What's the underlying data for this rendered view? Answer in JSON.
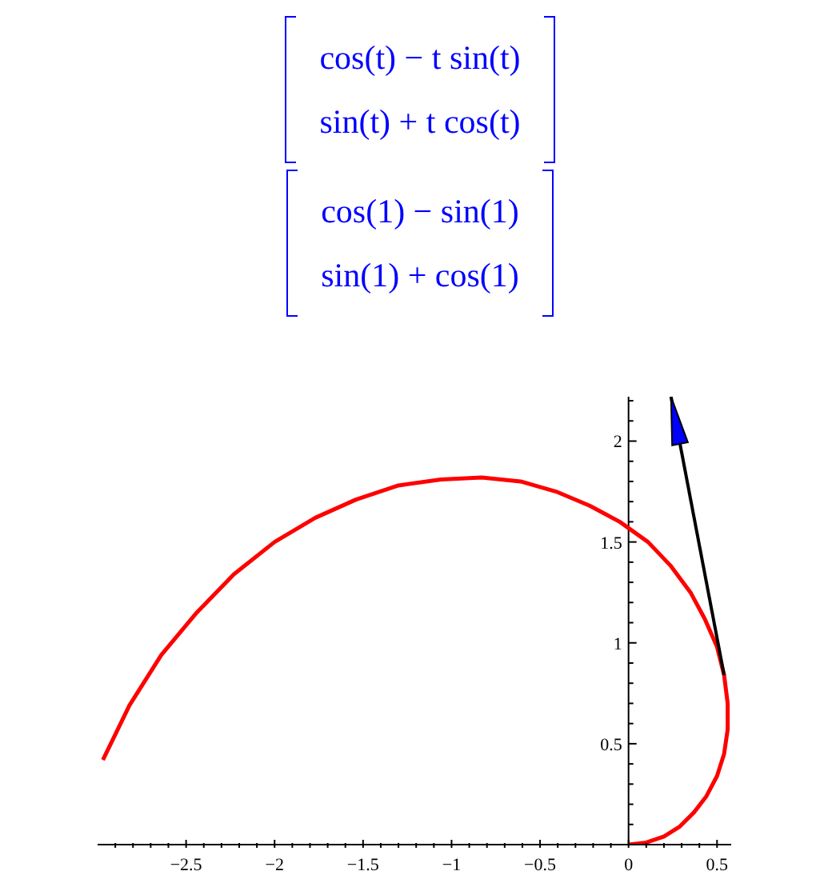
{
  "chart_data": {
    "type": "line",
    "annotations": [
      "cos(t) − t sin(t)",
      "sin(t) + t cos(t)",
      "cos(1) − sin(1)",
      "sin(1) + cos(1)"
    ],
    "series": [
      {
        "color": "#ff0000",
        "x": [
          0,
          0.1,
          0.2,
          0.29,
          0.37,
          0.44,
          0.5,
          0.54,
          0.56,
          0.56,
          0.54,
          0.5,
          0.43,
          0.35,
          0.24,
          0.11,
          -0.05,
          -0.22,
          -0.41,
          -0.61,
          -0.83,
          -1.06,
          -1.3,
          -1.54,
          -1.77,
          -2,
          -2.23,
          -2.44,
          -2.64,
          -2.82,
          -2.97
        ],
        "values": [
          0,
          0.01,
          0.04,
          0.09,
          0.16,
          0.24,
          0.34,
          0.45,
          0.57,
          0.7,
          0.84,
          0.98,
          1.12,
          1.25,
          1.38,
          1.5,
          1.6,
          1.68,
          1.75,
          1.8,
          1.82,
          1.81,
          1.78,
          1.71,
          1.62,
          1.5,
          1.34,
          1.15,
          0.94,
          0.69,
          0.42
        ]
      },
      {
        "color": "#000000",
        "x": [
          0.54,
          0.24
        ],
        "values": [
          0.84,
          2.22
        ]
      }
    ],
    "xlim": [
      -3,
      0.58
    ],
    "ylim": [
      0,
      2.22
    ],
    "xticks": [
      {
        "value": -2.9,
        "label": null
      },
      {
        "value": -2.8,
        "label": null
      },
      {
        "value": -2.7,
        "label": null
      },
      {
        "value": -2.6,
        "label": null
      },
      {
        "value": -2.5,
        "label": "−2.5"
      },
      {
        "value": -2.4,
        "label": null
      },
      {
        "value": -2.3,
        "label": null
      },
      {
        "value": -2.2,
        "label": null
      },
      {
        "value": -2.1,
        "label": null
      },
      {
        "value": -2,
        "label": "−2"
      },
      {
        "value": -1.9,
        "label": null
      },
      {
        "value": -1.8,
        "label": null
      },
      {
        "value": -1.7,
        "label": null
      },
      {
        "value": -1.6,
        "label": null
      },
      {
        "value": -1.5,
        "label": "−1.5"
      },
      {
        "value": -1.4,
        "label": null
      },
      {
        "value": -1.3,
        "label": null
      },
      {
        "value": -1.2,
        "label": null
      },
      {
        "value": -1.1,
        "label": null
      },
      {
        "value": -1,
        "label": "−1"
      },
      {
        "value": -0.9,
        "label": null
      },
      {
        "value": -0.8,
        "label": null
      },
      {
        "value": -0.7,
        "label": null
      },
      {
        "value": -0.6,
        "label": null
      },
      {
        "value": -0.5,
        "label": "−0.5"
      },
      {
        "value": -0.4,
        "label": null
      },
      {
        "value": -0.3,
        "label": null
      },
      {
        "value": -0.2,
        "label": null
      },
      {
        "value": -0.1,
        "label": null
      },
      0,
      {
        "value": 0.1,
        "label": null
      },
      {
        "value": 0.2,
        "label": null
      },
      {
        "value": 0.3,
        "label": null
      },
      {
        "value": 0.4,
        "label": null
      },
      0.5
    ],
    "yticks": [
      {
        "value": 0.1,
        "label": null
      },
      {
        "value": 0.2,
        "label": null
      },
      {
        "value": 0.3,
        "label": null
      },
      {
        "value": 0.4,
        "label": null
      },
      0.5,
      {
        "value": 0.6,
        "label": null
      },
      {
        "value": 0.7,
        "label": null
      },
      {
        "value": 0.8,
        "label": null
      },
      {
        "value": 0.9,
        "label": null
      },
      1,
      {
        "value": 1.1,
        "label": null
      },
      {
        "value": 1.2,
        "label": null
      },
      {
        "value": 1.3,
        "label": null
      },
      {
        "value": 1.4,
        "label": null
      },
      1.5,
      {
        "value": 1.6,
        "label": null
      },
      {
        "value": 1.7,
        "label": null
      },
      {
        "value": 1.8,
        "label": null
      },
      {
        "value": 1.9,
        "label": null
      },
      2,
      {
        "value": 2.1,
        "label": null
      },
      {
        "value": 2.2,
        "label": null
      }
    ],
    "grid": false,
    "legend": false,
    "marker": "none",
    "line_style": "solid"
  }
}
